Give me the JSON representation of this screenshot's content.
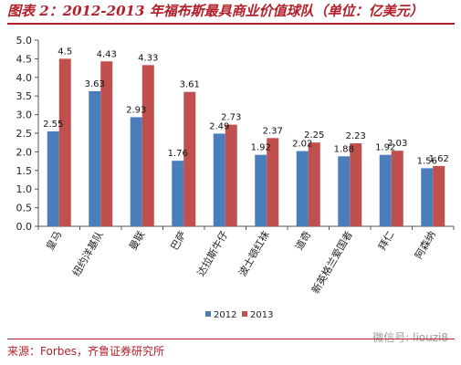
{
  "title": "图表 2：2012-2013 年福布斯最具商业价值球队（单位：亿美元）",
  "source": "来源：Forbes，齐鲁证券研究所",
  "watermark": "微信号: liouzi8",
  "colors": {
    "series_2012": "#4a7ebb",
    "series_2013": "#c0504d",
    "accent": "#b3202a"
  },
  "chart_data": {
    "type": "bar",
    "categories": [
      "皇马",
      "纽约洋基队",
      "曼联",
      "巴萨",
      "达拉斯牛仔",
      "波士顿红袜",
      "道奇",
      "新英格兰爱国者",
      "拜仁",
      "阿森纳"
    ],
    "series": [
      {
        "name": "2012",
        "values": [
          2.55,
          3.63,
          2.93,
          1.76,
          2.49,
          1.92,
          2.02,
          1.88,
          1.92,
          1.56
        ],
        "labels": [
          "2.55",
          "3.63",
          "2.93",
          "1.76",
          "2.49",
          "1.92",
          "2.02",
          "1.88",
          "1.92",
          "1.56"
        ]
      },
      {
        "name": "2013",
        "values": [
          4.5,
          4.43,
          4.33,
          3.61,
          2.73,
          2.37,
          2.25,
          2.23,
          2.03,
          1.62
        ],
        "labels": [
          "4.5",
          "4.43",
          "4.33",
          "3.61",
          "2.73",
          "2.37",
          "2.25",
          "2.23",
          "2.03",
          "1.62"
        ]
      }
    ],
    "ylim": [
      0,
      5
    ],
    "yticks": [
      "0.0",
      "0.5",
      "1.0",
      "1.5",
      "2.0",
      "2.5",
      "3.0",
      "3.5",
      "4.0",
      "4.5",
      "5.0"
    ],
    "legend_position": "bottom",
    "grid": false
  }
}
